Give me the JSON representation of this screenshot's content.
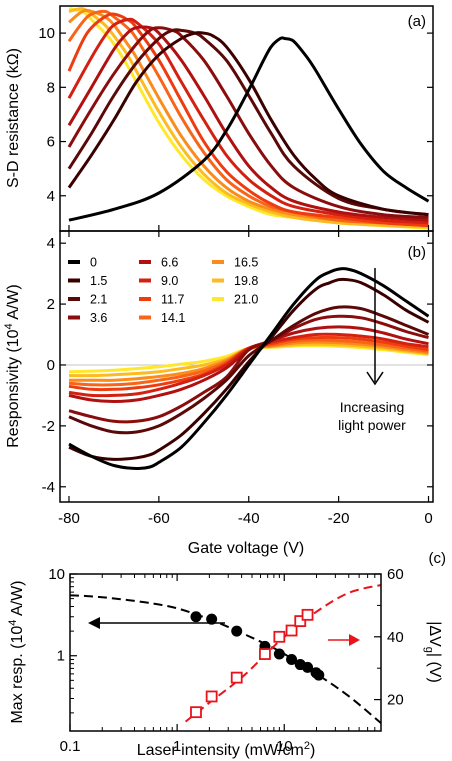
{
  "chart_data": [
    {
      "panel": "(a)",
      "type": "line",
      "ylabel": "S-D resistance (kΩ)",
      "xlim": [
        -82,
        1
      ],
      "ylim": [
        2.7,
        11
      ],
      "yticks": [
        4,
        6,
        8,
        10
      ],
      "xticks": [
        -80,
        -60,
        -40,
        -20,
        0
      ],
      "series": [
        {
          "color": "#000000",
          "x": [
            -80,
            -70,
            -60,
            -50,
            -45,
            -40,
            -37,
            -35,
            -33,
            -32,
            -30,
            -27,
            -25,
            -20,
            -15,
            -10,
            -5,
            0
          ],
          "y": [
            3.1,
            3.5,
            4.1,
            5.3,
            6.4,
            7.9,
            8.9,
            9.5,
            9.8,
            9.8,
            9.7,
            9.1,
            8.6,
            7.2,
            5.9,
            4.9,
            4.3,
            3.8
          ]
        },
        {
          "color": "#3a0000",
          "x": [
            -80,
            -75,
            -70,
            -65,
            -60,
            -55,
            -52,
            -50,
            -48,
            -45,
            -40,
            -35,
            -30,
            -25,
            -20,
            -10,
            0
          ],
          "y": [
            4.3,
            5.5,
            6.8,
            8.2,
            9.2,
            9.8,
            10.0,
            10.0,
            9.9,
            9.5,
            8.3,
            6.8,
            5.5,
            4.6,
            4.0,
            3.5,
            3.3
          ]
        },
        {
          "color": "#5a0808",
          "x": [
            -80,
            -75,
            -70,
            -65,
            -60,
            -57,
            -55,
            -52,
            -50,
            -45,
            -40,
            -35,
            -30,
            -20,
            -10,
            0
          ],
          "y": [
            5.0,
            6.3,
            7.7,
            8.9,
            9.8,
            10.1,
            10.1,
            10.0,
            9.8,
            9.0,
            7.7,
            6.3,
            5.1,
            3.9,
            3.5,
            3.3
          ]
        },
        {
          "color": "#8a0c0c",
          "x": [
            -80,
            -75,
            -70,
            -65,
            -62,
            -60,
            -57,
            -55,
            -50,
            -45,
            -40,
            -35,
            -30,
            -20,
            -10,
            0
          ],
          "y": [
            5.8,
            7.2,
            8.5,
            9.6,
            10.1,
            10.2,
            10.1,
            9.9,
            9.0,
            7.7,
            6.3,
            5.1,
            4.3,
            3.6,
            3.3,
            3.2
          ]
        },
        {
          "color": "#b01010",
          "x": [
            -80,
            -75,
            -70,
            -67,
            -65,
            -62,
            -60,
            -55,
            -50,
            -45,
            -40,
            -35,
            -30,
            -20,
            -10,
            0
          ],
          "y": [
            6.6,
            8.0,
            9.4,
            10.0,
            10.2,
            10.2,
            10.0,
            9.0,
            7.7,
            6.3,
            5.1,
            4.3,
            3.8,
            3.4,
            3.2,
            3.1
          ]
        },
        {
          "color": "#d42010",
          "x": [
            -80,
            -75,
            -72,
            -70,
            -67,
            -65,
            -60,
            -55,
            -50,
            -45,
            -40,
            -35,
            -30,
            -20,
            -10,
            0
          ],
          "y": [
            7.6,
            9.1,
            9.9,
            10.3,
            10.5,
            10.4,
            9.6,
            8.2,
            6.8,
            5.5,
            4.6,
            4.0,
            3.6,
            3.3,
            3.1,
            3.0
          ]
        },
        {
          "color": "#ee3c10",
          "x": [
            -80,
            -77,
            -75,
            -72,
            -70,
            -67,
            -65,
            -60,
            -55,
            -50,
            -45,
            -40,
            -35,
            -30,
            -20,
            -10,
            0
          ],
          "y": [
            8.6,
            9.7,
            10.2,
            10.6,
            10.7,
            10.5,
            10.2,
            9.0,
            7.5,
            6.0,
            4.9,
            4.2,
            3.7,
            3.4,
            3.2,
            3.0,
            2.9
          ]
        },
        {
          "color": "#f86418",
          "x": [
            -80,
            -77,
            -75,
            -72,
            -70,
            -67,
            -65,
            -60,
            -55,
            -50,
            -45,
            -40,
            -35,
            -30,
            -20,
            -10,
            0
          ],
          "y": [
            9.7,
            10.4,
            10.7,
            10.8,
            10.6,
            10.2,
            9.8,
            8.4,
            6.9,
            5.6,
            4.6,
            4.0,
            3.6,
            3.4,
            3.1,
            3.0,
            2.9
          ]
        },
        {
          "color": "#fb8c1c",
          "x": [
            -80,
            -77,
            -75,
            -72,
            -70,
            -67,
            -65,
            -60,
            -55,
            -50,
            -45,
            -40,
            -35,
            -30,
            -20,
            -10,
            0
          ],
          "y": [
            10.4,
            10.8,
            10.8,
            10.6,
            10.3,
            9.6,
            9.1,
            7.6,
            6.2,
            5.1,
            4.3,
            3.8,
            3.5,
            3.3,
            3.1,
            3.0,
            2.9
          ]
        },
        {
          "color": "#fdbb22",
          "x": [
            -80,
            -77,
            -75,
            -72,
            -70,
            -67,
            -65,
            -60,
            -55,
            -50,
            -45,
            -40,
            -35,
            -30,
            -20,
            -10,
            0
          ],
          "y": [
            10.8,
            10.9,
            10.7,
            10.3,
            9.9,
            9.2,
            8.6,
            7.1,
            5.8,
            4.8,
            4.1,
            3.7,
            3.4,
            3.2,
            3.0,
            2.9,
            2.85
          ]
        },
        {
          "color": "#ffe82a",
          "x": [
            -80,
            -77,
            -75,
            -72,
            -70,
            -67,
            -65,
            -60,
            -55,
            -50,
            -45,
            -40,
            -35,
            -30,
            -20,
            -10,
            0
          ],
          "y": [
            10.9,
            10.8,
            10.5,
            10.0,
            9.6,
            8.8,
            8.2,
            6.7,
            5.5,
            4.6,
            4.0,
            3.6,
            3.3,
            3.2,
            3.0,
            2.9,
            2.8
          ]
        }
      ]
    },
    {
      "panel": "(b)",
      "type": "line",
      "ylabel": "Responsivity (10",
      "ylabel_sup": "4",
      "ylabel_end": " A/W)",
      "xlabel": "Gate voltage (V)",
      "xlim": [
        -82,
        1
      ],
      "ylim": [
        -4.5,
        4.4
      ],
      "yticks": [
        -4,
        -2,
        0,
        2,
        4
      ],
      "xticks": [
        -80,
        -60,
        -40,
        -20,
        0
      ],
      "legend": [
        "0",
        "1.5",
        "2.1",
        "3.6",
        "6.6",
        "9.0",
        "11.7",
        "14.1",
        "16.5",
        "19.8",
        "21.0"
      ],
      "annotation": [
        "Increasing",
        "light power"
      ],
      "series": [
        {
          "name": "0",
          "color": "#000000",
          "x": [
            -80,
            -75,
            -70,
            -65,
            -62,
            -60,
            -55,
            -50,
            -45,
            -40,
            -35,
            -30,
            -25,
            -22,
            -20,
            -18,
            -15,
            -10,
            -5,
            0
          ],
          "y": [
            -2.6,
            -3.0,
            -3.3,
            -3.4,
            -3.35,
            -3.2,
            -2.7,
            -1.9,
            -1.0,
            0.0,
            1.0,
            2.0,
            2.8,
            3.05,
            3.15,
            3.15,
            3.0,
            2.6,
            2.1,
            1.6
          ]
        },
        {
          "name": "1.5",
          "color": "#3a0000",
          "x": [
            -80,
            -75,
            -70,
            -65,
            -62,
            -60,
            -55,
            -50,
            -45,
            -40,
            -35,
            -30,
            -25,
            -22,
            -20,
            -18,
            -15,
            -10,
            -5,
            0
          ],
          "y": [
            -2.7,
            -3.0,
            -3.1,
            -3.05,
            -2.95,
            -2.8,
            -2.3,
            -1.6,
            -0.8,
            0.1,
            0.9,
            1.8,
            2.5,
            2.7,
            2.8,
            2.8,
            2.7,
            2.3,
            1.8,
            1.4
          ]
        },
        {
          "name": "2.1",
          "color": "#5a0808",
          "x": [
            -80,
            -75,
            -70,
            -65,
            -60,
            -55,
            -50,
            -45,
            -40,
            -35,
            -30,
            -25,
            -20,
            -15,
            -10,
            -5,
            0
          ],
          "y": [
            -1.7,
            -2.0,
            -2.2,
            -2.2,
            -2.0,
            -1.6,
            -1.1,
            -0.5,
            0.3,
            0.8,
            1.3,
            1.7,
            1.9,
            1.85,
            1.6,
            1.3,
            1.0
          ]
        },
        {
          "name": "3.6",
          "color": "#8a0c0c",
          "x": [
            -80,
            -75,
            -70,
            -65,
            -60,
            -55,
            -50,
            -45,
            -40,
            -35,
            -30,
            -25,
            -20,
            -15,
            -10,
            -5,
            0
          ],
          "y": [
            -1.5,
            -1.7,
            -1.85,
            -1.85,
            -1.7,
            -1.35,
            -0.9,
            -0.4,
            0.5,
            0.8,
            1.2,
            1.5,
            1.6,
            1.55,
            1.35,
            1.1,
            0.9
          ]
        },
        {
          "name": "6.6",
          "color": "#b01010",
          "x": [
            -80,
            -75,
            -70,
            -65,
            -60,
            -55,
            -50,
            -45,
            -40,
            -35,
            -30,
            -25,
            -20,
            -15,
            -10,
            -5,
            0
          ],
          "y": [
            -1.0,
            -1.15,
            -1.2,
            -1.15,
            -1.0,
            -0.8,
            -0.5,
            -0.1,
            0.5,
            0.8,
            1.05,
            1.2,
            1.25,
            1.2,
            1.05,
            0.85,
            0.7
          ]
        },
        {
          "name": "9.0",
          "color": "#d42010",
          "x": [
            -80,
            -75,
            -70,
            -65,
            -60,
            -55,
            -50,
            -45,
            -40,
            -35,
            -30,
            -25,
            -20,
            -15,
            -10,
            -5,
            0
          ],
          "y": [
            -0.9,
            -1.0,
            -1.0,
            -0.95,
            -0.8,
            -0.6,
            -0.35,
            0.0,
            0.55,
            0.75,
            0.9,
            1.0,
            1.0,
            0.95,
            0.85,
            0.7,
            0.6
          ]
        },
        {
          "name": "11.7",
          "color": "#ee3c10",
          "x": [
            -80,
            -75,
            -70,
            -65,
            -60,
            -55,
            -50,
            -45,
            -40,
            -35,
            -30,
            -25,
            -20,
            -15,
            -10,
            -5,
            0
          ],
          "y": [
            -0.7,
            -0.8,
            -0.8,
            -0.75,
            -0.65,
            -0.5,
            -0.3,
            0.05,
            0.55,
            0.7,
            0.85,
            0.9,
            0.9,
            0.85,
            0.75,
            0.62,
            0.5
          ]
        },
        {
          "name": "14.1",
          "color": "#f86418",
          "x": [
            -80,
            -75,
            -70,
            -65,
            -60,
            -55,
            -50,
            -45,
            -40,
            -35,
            -30,
            -25,
            -20,
            -15,
            -10,
            -5,
            0
          ],
          "y": [
            -0.6,
            -0.65,
            -0.65,
            -0.6,
            -0.5,
            -0.38,
            -0.2,
            0.1,
            0.55,
            0.65,
            0.78,
            0.82,
            0.8,
            0.75,
            0.66,
            0.55,
            0.45
          ]
        },
        {
          "name": "16.5",
          "color": "#fb8c1c",
          "x": [
            -80,
            -75,
            -70,
            -65,
            -60,
            -55,
            -50,
            -45,
            -40,
            -35,
            -30,
            -25,
            -20,
            -15,
            -10,
            -5,
            0
          ],
          "y": [
            -0.5,
            -0.5,
            -0.5,
            -0.45,
            -0.38,
            -0.28,
            -0.12,
            0.15,
            0.55,
            0.62,
            0.72,
            0.75,
            0.73,
            0.68,
            0.6,
            0.5,
            0.4
          ]
        },
        {
          "name": "19.8",
          "color": "#fdbb22",
          "x": [
            -80,
            -75,
            -70,
            -65,
            -60,
            -55,
            -50,
            -45,
            -40,
            -35,
            -30,
            -25,
            -20,
            -15,
            -10,
            -5,
            0
          ],
          "y": [
            -0.35,
            -0.35,
            -0.32,
            -0.28,
            -0.22,
            -0.12,
            0.0,
            0.2,
            0.55,
            0.6,
            0.66,
            0.68,
            0.66,
            0.62,
            0.55,
            0.46,
            0.37
          ]
        },
        {
          "name": "21.0",
          "color": "#ffe82a",
          "x": [
            -80,
            -75,
            -70,
            -65,
            -60,
            -55,
            -50,
            -45,
            -40,
            -35,
            -30,
            -25,
            -20,
            -15,
            -10,
            -5,
            0
          ],
          "y": [
            -0.22,
            -0.2,
            -0.17,
            -0.12,
            -0.06,
            0.03,
            0.12,
            0.28,
            0.55,
            0.58,
            0.62,
            0.63,
            0.61,
            0.57,
            0.5,
            0.42,
            0.34
          ]
        }
      ]
    },
    {
      "panel": "(c)",
      "type": "scatter",
      "xscale": "log",
      "yscale_left": "log",
      "xlabel": "Laser intensity (mW/cm",
      "xlabel_sup": "2",
      "xlabel_end": ")",
      "ylabel_left": "Max resp. (10",
      "ylabel_left_sup": "4",
      "ylabel_left_end": " A/W)",
      "ylabel_right": "|ΔV",
      "ylabel_right_sub": "g",
      "ylabel_right_end": "| (V)",
      "xlim": [
        0.1,
        80
      ],
      "ylim_left": [
        0.12,
        10
      ],
      "ylim_right": [
        10,
        60
      ],
      "xticks": [
        0.1,
        1,
        10
      ],
      "xtick_labels": [
        "0.1",
        "1",
        "10"
      ],
      "yticks_left": [
        1,
        10
      ],
      "ytick_labels_left": [
        "1",
        "10"
      ],
      "yticks_right": [
        20,
        40,
        60
      ],
      "ytick_labels_right": [
        "20",
        "40",
        "60"
      ],
      "series": [
        {
          "axis": "left",
          "marker": "circle",
          "color": "#000000",
          "x": [
            1.5,
            2.1,
            3.6,
            6.6,
            9.0,
            11.7,
            14.1,
            16.5,
            19.8,
            21.0
          ],
          "y": [
            3.0,
            2.8,
            2.0,
            1.3,
            1.05,
            0.9,
            0.78,
            0.72,
            0.62,
            0.58
          ]
        },
        {
          "axis": "left",
          "type": "line",
          "style": "dashed",
          "color": "#000000",
          "x": [
            0.1,
            0.2,
            0.5,
            1,
            2,
            4,
            7,
            10,
            20,
            40,
            80
          ],
          "y": [
            5.5,
            5.2,
            4.5,
            3.8,
            2.8,
            1.9,
            1.35,
            1.05,
            0.6,
            0.32,
            0.15
          ]
        },
        {
          "axis": "right",
          "marker": "square",
          "color": "#e8141c",
          "x": [
            1.5,
            2.1,
            3.6,
            6.6,
            9.0,
            11.7,
            14.1,
            16.5
          ],
          "y": [
            16,
            21,
            27,
            34.5,
            40,
            42,
            45,
            47
          ]
        },
        {
          "axis": "right",
          "type": "line",
          "style": "dashed",
          "color": "#e8141c",
          "x": [
            1.2,
            2,
            4,
            7,
            10,
            20,
            40,
            80
          ],
          "y": [
            13,
            19,
            27,
            35,
            40,
            48,
            54,
            56.5
          ]
        }
      ]
    }
  ]
}
